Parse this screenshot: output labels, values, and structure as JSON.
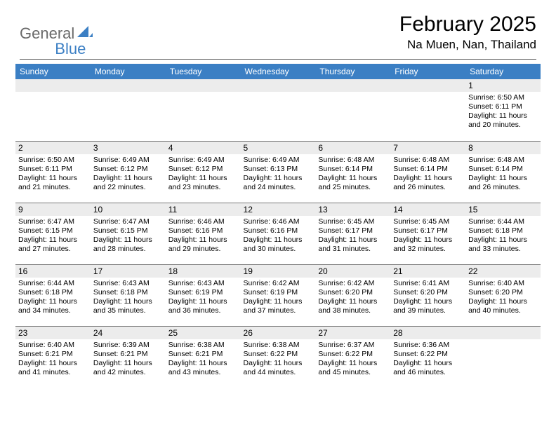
{
  "logo": {
    "text1": "General",
    "text2": "Blue"
  },
  "title": "February 2025",
  "location": "Na Muen, Nan, Thailand",
  "colors": {
    "header_bg": "#3b7fc4",
    "header_text": "#ffffff",
    "daynum_bg": "#ececec",
    "rule": "#7a7a7a",
    "logo_gray": "#6a6a6a",
    "logo_blue": "#3b7fc4"
  },
  "weekdays": [
    "Sunday",
    "Monday",
    "Tuesday",
    "Wednesday",
    "Thursday",
    "Friday",
    "Saturday"
  ],
  "weeks": [
    [
      {
        "n": "",
        "lines": []
      },
      {
        "n": "",
        "lines": []
      },
      {
        "n": "",
        "lines": []
      },
      {
        "n": "",
        "lines": []
      },
      {
        "n": "",
        "lines": []
      },
      {
        "n": "",
        "lines": []
      },
      {
        "n": "1",
        "lines": [
          "Sunrise: 6:50 AM",
          "Sunset: 6:11 PM",
          "Daylight: 11 hours and 20 minutes."
        ]
      }
    ],
    [
      {
        "n": "2",
        "lines": [
          "Sunrise: 6:50 AM",
          "Sunset: 6:11 PM",
          "Daylight: 11 hours and 21 minutes."
        ]
      },
      {
        "n": "3",
        "lines": [
          "Sunrise: 6:49 AM",
          "Sunset: 6:12 PM",
          "Daylight: 11 hours and 22 minutes."
        ]
      },
      {
        "n": "4",
        "lines": [
          "Sunrise: 6:49 AM",
          "Sunset: 6:12 PM",
          "Daylight: 11 hours and 23 minutes."
        ]
      },
      {
        "n": "5",
        "lines": [
          "Sunrise: 6:49 AM",
          "Sunset: 6:13 PM",
          "Daylight: 11 hours and 24 minutes."
        ]
      },
      {
        "n": "6",
        "lines": [
          "Sunrise: 6:48 AM",
          "Sunset: 6:14 PM",
          "Daylight: 11 hours and 25 minutes."
        ]
      },
      {
        "n": "7",
        "lines": [
          "Sunrise: 6:48 AM",
          "Sunset: 6:14 PM",
          "Daylight: 11 hours and 26 minutes."
        ]
      },
      {
        "n": "8",
        "lines": [
          "Sunrise: 6:48 AM",
          "Sunset: 6:14 PM",
          "Daylight: 11 hours and 26 minutes."
        ]
      }
    ],
    [
      {
        "n": "9",
        "lines": [
          "Sunrise: 6:47 AM",
          "Sunset: 6:15 PM",
          "Daylight: 11 hours and 27 minutes."
        ]
      },
      {
        "n": "10",
        "lines": [
          "Sunrise: 6:47 AM",
          "Sunset: 6:15 PM",
          "Daylight: 11 hours and 28 minutes."
        ]
      },
      {
        "n": "11",
        "lines": [
          "Sunrise: 6:46 AM",
          "Sunset: 6:16 PM",
          "Daylight: 11 hours and 29 minutes."
        ]
      },
      {
        "n": "12",
        "lines": [
          "Sunrise: 6:46 AM",
          "Sunset: 6:16 PM",
          "Daylight: 11 hours and 30 minutes."
        ]
      },
      {
        "n": "13",
        "lines": [
          "Sunrise: 6:45 AM",
          "Sunset: 6:17 PM",
          "Daylight: 11 hours and 31 minutes."
        ]
      },
      {
        "n": "14",
        "lines": [
          "Sunrise: 6:45 AM",
          "Sunset: 6:17 PM",
          "Daylight: 11 hours and 32 minutes."
        ]
      },
      {
        "n": "15",
        "lines": [
          "Sunrise: 6:44 AM",
          "Sunset: 6:18 PM",
          "Daylight: 11 hours and 33 minutes."
        ]
      }
    ],
    [
      {
        "n": "16",
        "lines": [
          "Sunrise: 6:44 AM",
          "Sunset: 6:18 PM",
          "Daylight: 11 hours and 34 minutes."
        ]
      },
      {
        "n": "17",
        "lines": [
          "Sunrise: 6:43 AM",
          "Sunset: 6:18 PM",
          "Daylight: 11 hours and 35 minutes."
        ]
      },
      {
        "n": "18",
        "lines": [
          "Sunrise: 6:43 AM",
          "Sunset: 6:19 PM",
          "Daylight: 11 hours and 36 minutes."
        ]
      },
      {
        "n": "19",
        "lines": [
          "Sunrise: 6:42 AM",
          "Sunset: 6:19 PM",
          "Daylight: 11 hours and 37 minutes."
        ]
      },
      {
        "n": "20",
        "lines": [
          "Sunrise: 6:42 AM",
          "Sunset: 6:20 PM",
          "Daylight: 11 hours and 38 minutes."
        ]
      },
      {
        "n": "21",
        "lines": [
          "Sunrise: 6:41 AM",
          "Sunset: 6:20 PM",
          "Daylight: 11 hours and 39 minutes."
        ]
      },
      {
        "n": "22",
        "lines": [
          "Sunrise: 6:40 AM",
          "Sunset: 6:20 PM",
          "Daylight: 11 hours and 40 minutes."
        ]
      }
    ],
    [
      {
        "n": "23",
        "lines": [
          "Sunrise: 6:40 AM",
          "Sunset: 6:21 PM",
          "Daylight: 11 hours and 41 minutes."
        ]
      },
      {
        "n": "24",
        "lines": [
          "Sunrise: 6:39 AM",
          "Sunset: 6:21 PM",
          "Daylight: 11 hours and 42 minutes."
        ]
      },
      {
        "n": "25",
        "lines": [
          "Sunrise: 6:38 AM",
          "Sunset: 6:21 PM",
          "Daylight: 11 hours and 43 minutes."
        ]
      },
      {
        "n": "26",
        "lines": [
          "Sunrise: 6:38 AM",
          "Sunset: 6:22 PM",
          "Daylight: 11 hours and 44 minutes."
        ]
      },
      {
        "n": "27",
        "lines": [
          "Sunrise: 6:37 AM",
          "Sunset: 6:22 PM",
          "Daylight: 11 hours and 45 minutes."
        ]
      },
      {
        "n": "28",
        "lines": [
          "Sunrise: 6:36 AM",
          "Sunset: 6:22 PM",
          "Daylight: 11 hours and 46 minutes."
        ]
      },
      {
        "n": "",
        "lines": []
      }
    ]
  ]
}
